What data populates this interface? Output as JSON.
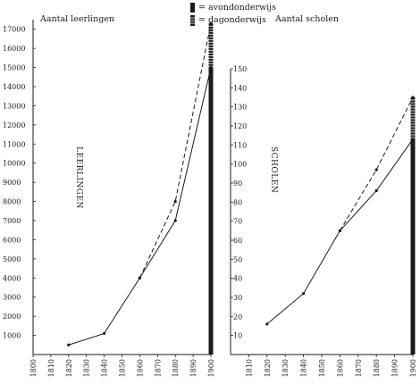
{
  "legend": {
    "evening": "= avondonderwijs",
    "day": "= dagonderwijs"
  },
  "chart_data": [
    {
      "type": "line",
      "title": "Aantal leerlingen",
      "ylabel": "LEERLINGEN",
      "xlabel": "",
      "x_ticks": [
        "1800",
        "1810",
        "1820",
        "1830",
        "1840",
        "1850",
        "1860",
        "1870",
        "1880",
        "1890",
        "1900"
      ],
      "y_ticks": [
        "1000",
        "2000",
        "3000",
        "4000",
        "5000",
        "6000",
        "7000",
        "8000",
        "9000",
        "10000",
        "11000",
        "12000",
        "13000",
        "14000",
        "15000",
        "16000",
        "17000"
      ],
      "xlim": [
        1800,
        1900
      ],
      "ylim": [
        0,
        17500
      ],
      "legend_position": "top-center",
      "series": [
        {
          "name": "= dagonderwijs",
          "style": "solid",
          "x": [
            1820,
            1840,
            1860,
            1880,
            1900
          ],
          "y": [
            500,
            1100,
            4000,
            7000,
            15000
          ]
        },
        {
          "name": "= avondonderwijs",
          "style": "dashed",
          "x": [
            1860,
            1880,
            1900
          ],
          "y": [
            4000,
            8000,
            17300
          ]
        }
      ],
      "bar_at": 1900
    },
    {
      "type": "line",
      "title": "Aantal scholen",
      "ylabel": "SCHOLEN",
      "xlabel": "",
      "x_ticks": [
        "1810",
        "1820",
        "1830",
        "1840",
        "1850",
        "1860",
        "1870",
        "1880",
        "1890",
        "1900"
      ],
      "y_ticks": [
        "10",
        "20",
        "30",
        "40",
        "50",
        "60",
        "70",
        "80",
        "90",
        "100",
        "110",
        "120",
        "130",
        "140",
        "150"
      ],
      "xlim": [
        1800,
        1900
      ],
      "ylim": [
        0,
        150
      ],
      "legend_position": "top-center",
      "series": [
        {
          "name": "= dagonderwijs",
          "style": "solid",
          "x": [
            1820,
            1840,
            1860,
            1880,
            1900
          ],
          "y": [
            16,
            32,
            65,
            86,
            113
          ]
        },
        {
          "name": "= avondonderwijs",
          "style": "dashed",
          "x": [
            1860,
            1880,
            1900
          ],
          "y": [
            65,
            97,
            135
          ]
        }
      ],
      "bar_at": 1900
    }
  ]
}
